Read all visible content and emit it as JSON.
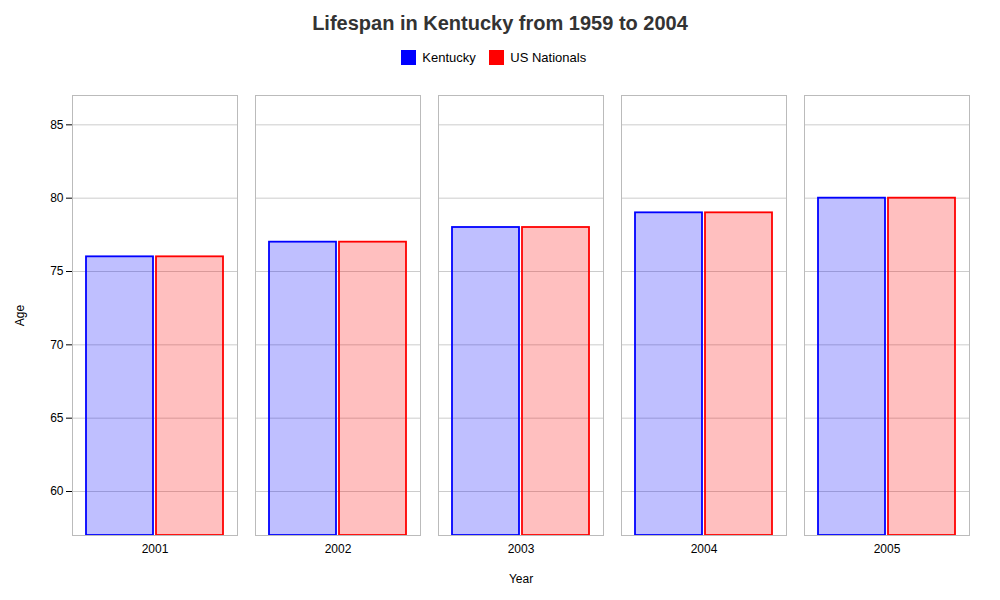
{
  "chart_data": {
    "type": "bar",
    "title": "Lifespan in Kentucky from 1959 to 2004",
    "xlabel": "Year",
    "ylabel": "Age",
    "categories": [
      "2001",
      "2002",
      "2003",
      "2004",
      "2005"
    ],
    "series": [
      {
        "name": "Kentucky",
        "color": "#0000ff",
        "values": [
          76,
          77,
          78,
          79,
          80
        ]
      },
      {
        "name": "US Nationals",
        "color": "#ff0000",
        "values": [
          76,
          77,
          78,
          79,
          80
        ]
      }
    ],
    "ylim": [
      57,
      87
    ],
    "yticks": [
      60,
      65,
      70,
      75,
      80,
      85
    ],
    "grid": true,
    "legend": "top"
  }
}
